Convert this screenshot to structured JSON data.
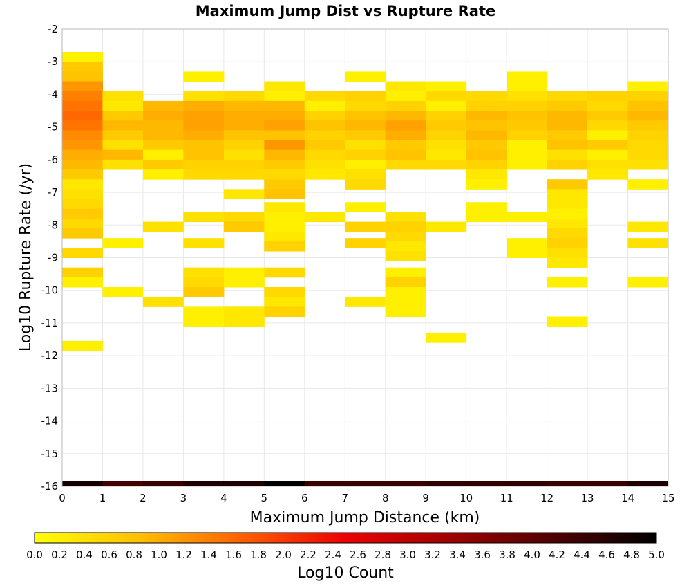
{
  "chart_data": {
    "type": "heatmap",
    "title": "Maximum Jump Dist vs Rupture Rate",
    "xlabel": "Maximum Jump Distance (km)",
    "ylabel": "Log10 Rupture Rate (/yr)",
    "xlim": [
      0,
      15
    ],
    "ylim": [
      -16,
      -2
    ],
    "x_ticks": [
      "0",
      "1",
      "2",
      "3",
      "4",
      "5",
      "6",
      "7",
      "8",
      "9",
      "10",
      "11",
      "12",
      "13",
      "14",
      "15"
    ],
    "y_ticks": [
      "-2",
      "-3",
      "-4",
      "-5",
      "-6",
      "-7",
      "-8",
      "-9",
      "-10",
      "-11",
      "-12",
      "-13",
      "-14",
      "-15",
      "-16"
    ],
    "bin_width_x": 1,
    "bin_height_y": 0.3,
    "grid": true,
    "colorbar": {
      "label": "Log10 Count",
      "range": [
        0,
        5
      ],
      "ticks": [
        "0.0",
        "0.2",
        "0.4",
        "0.6",
        "0.8",
        "1.0",
        "1.2",
        "1.4",
        "1.6",
        "1.8",
        "2.0",
        "2.2",
        "2.4",
        "2.6",
        "2.8",
        "3.0",
        "3.2",
        "3.4",
        "3.6",
        "3.8",
        "4.0",
        "4.2",
        "4.4",
        "4.6",
        "4.8",
        "5.0"
      ],
      "colors": [
        "#ffff00",
        "#ffc000",
        "#ff6000",
        "#ee0000",
        "#a00000",
        "#500000",
        "#000000"
      ]
    },
    "columns": [
      {
        "x": 0,
        "cells": [
          [
            -2.85,
            0.2
          ],
          [
            -3.15,
            0.7
          ],
          [
            -3.45,
            0.8
          ],
          [
            -3.75,
            1.2
          ],
          [
            -4.05,
            1.4
          ],
          [
            -4.35,
            1.5
          ],
          [
            -4.65,
            1.6
          ],
          [
            -4.95,
            1.5
          ],
          [
            -5.25,
            1.3
          ],
          [
            -5.55,
            1.2
          ],
          [
            -5.85,
            1.0
          ],
          [
            -6.15,
            0.9
          ],
          [
            -6.45,
            0.7
          ],
          [
            -6.75,
            0.3
          ],
          [
            -7.05,
            0.4
          ],
          [
            -7.35,
            0.5
          ],
          [
            -7.65,
            0.7
          ],
          [
            -7.95,
            0.5
          ],
          [
            -8.25,
            0.7
          ],
          [
            -8.85,
            0.5
          ],
          [
            -9.45,
            0.6
          ],
          [
            -9.75,
            0.2
          ],
          [
            -11.7,
            0.2
          ],
          [
            -16,
            4.8
          ]
        ]
      },
      {
        "x": 1,
        "cells": [
          [
            -4.05,
            0.4
          ],
          [
            -4.35,
            0.3
          ],
          [
            -4.65,
            0.7
          ],
          [
            -4.95,
            0.9
          ],
          [
            -5.25,
            0.7
          ],
          [
            -5.55,
            0.4
          ],
          [
            -5.85,
            0.9
          ],
          [
            -6.15,
            0.4
          ],
          [
            -8.55,
            0.2
          ],
          [
            -10.05,
            0.2
          ],
          [
            -16,
            4.3
          ]
        ]
      },
      {
        "x": 2,
        "cells": [
          [
            -4.35,
            0.9
          ],
          [
            -4.65,
            1.0
          ],
          [
            -4.95,
            0.9
          ],
          [
            -5.25,
            0.9
          ],
          [
            -5.55,
            0.7
          ],
          [
            -5.85,
            0.2
          ],
          [
            -6.15,
            0.7
          ],
          [
            -6.45,
            0.2
          ],
          [
            -8.05,
            0.4
          ],
          [
            -10.35,
            0.4
          ],
          [
            -16,
            4.4
          ]
        ]
      },
      {
        "x": 3,
        "cells": [
          [
            -3.45,
            0.2
          ],
          [
            -4.05,
            0.4
          ],
          [
            -4.35,
            1.0
          ],
          [
            -4.65,
            1.1
          ],
          [
            -4.95,
            1.1
          ],
          [
            -5.25,
            1.0
          ],
          [
            -5.55,
            0.8
          ],
          [
            -5.85,
            0.8
          ],
          [
            -6.15,
            0.6
          ],
          [
            -6.45,
            0.5
          ],
          [
            -7.75,
            0.4
          ],
          [
            -8.55,
            0.4
          ],
          [
            -9.45,
            0.4
          ],
          [
            -9.75,
            0.5
          ],
          [
            -10.05,
            0.7
          ],
          [
            -10.65,
            0.2
          ],
          [
            -10.95,
            0.2
          ],
          [
            -16,
            4.7
          ]
        ]
      },
      {
        "x": 4,
        "cells": [
          [
            -4.05,
            0.5
          ],
          [
            -4.35,
            0.9
          ],
          [
            -4.65,
            1.0
          ],
          [
            -4.95,
            1.0
          ],
          [
            -5.25,
            0.8
          ],
          [
            -5.55,
            0.6
          ],
          [
            -5.85,
            0.4
          ],
          [
            -6.15,
            0.6
          ],
          [
            -6.45,
            0.5
          ],
          [
            -7.05,
            0.3
          ],
          [
            -7.75,
            0.5
          ],
          [
            -8.05,
            0.7
          ],
          [
            -9.45,
            0.2
          ],
          [
            -9.75,
            0.2
          ],
          [
            -10.65,
            0.3
          ],
          [
            -10.95,
            0.3
          ],
          [
            -16,
            4.7
          ]
        ]
      },
      {
        "x": 5,
        "cells": [
          [
            -3.75,
            0.3
          ],
          [
            -4.05,
            0.2
          ],
          [
            -4.35,
            0.9
          ],
          [
            -4.65,
            1.0
          ],
          [
            -4.95,
            1.1
          ],
          [
            -5.25,
            0.8
          ],
          [
            -5.55,
            1.2
          ],
          [
            -5.85,
            0.9
          ],
          [
            -6.15,
            0.7
          ],
          [
            -6.45,
            0.5
          ],
          [
            -6.75,
            0.7
          ],
          [
            -7.05,
            0.8
          ],
          [
            -7.45,
            0.3
          ],
          [
            -7.75,
            0.2
          ],
          [
            -8.05,
            0.2
          ],
          [
            -8.35,
            0.3
          ],
          [
            -8.65,
            0.6
          ],
          [
            -9.45,
            0.5
          ],
          [
            -10.05,
            0.5
          ],
          [
            -10.35,
            0.3
          ],
          [
            -10.65,
            0.6
          ],
          [
            -16,
            5.0
          ]
        ]
      },
      {
        "x": 6,
        "cells": [
          [
            -4.05,
            0.5
          ],
          [
            -4.35,
            0.2
          ],
          [
            -4.65,
            0.6
          ],
          [
            -4.95,
            0.8
          ],
          [
            -5.25,
            0.6
          ],
          [
            -5.55,
            0.7
          ],
          [
            -5.85,
            0.5
          ],
          [
            -6.15,
            0.4
          ],
          [
            -6.45,
            0.3
          ],
          [
            -7.75,
            0.3
          ],
          [
            -16,
            4.4
          ]
        ]
      },
      {
        "x": 7,
        "cells": [
          [
            -3.45,
            0.2
          ],
          [
            -4.05,
            0.6
          ],
          [
            -4.35,
            0.5
          ],
          [
            -4.65,
            0.8
          ],
          [
            -4.95,
            0.9
          ],
          [
            -5.25,
            0.7
          ],
          [
            -5.55,
            0.4
          ],
          [
            -5.85,
            0.6
          ],
          [
            -6.15,
            0.2
          ],
          [
            -6.45,
            0.4
          ],
          [
            -6.75,
            0.5
          ],
          [
            -7.45,
            0.2
          ],
          [
            -8.05,
            0.6
          ],
          [
            -8.55,
            0.6
          ],
          [
            -10.35,
            0.3
          ],
          [
            -16,
            4.4
          ]
        ]
      },
      {
        "x": 8,
        "cells": [
          [
            -3.75,
            0.3
          ],
          [
            -4.05,
            0.2
          ],
          [
            -4.35,
            0.6
          ],
          [
            -4.65,
            0.9
          ],
          [
            -4.95,
            1.1
          ],
          [
            -5.25,
            1.0
          ],
          [
            -5.55,
            0.7
          ],
          [
            -5.85,
            0.8
          ],
          [
            -6.15,
            0.5
          ],
          [
            -7.75,
            0.4
          ],
          [
            -8.05,
            0.6
          ],
          [
            -8.35,
            0.5
          ],
          [
            -8.65,
            0.3
          ],
          [
            -8.95,
            0.4
          ],
          [
            -9.45,
            0.2
          ],
          [
            -9.75,
            0.6
          ],
          [
            -10.05,
            0.2
          ],
          [
            -10.35,
            0.2
          ],
          [
            -10.65,
            0.2
          ],
          [
            -16,
            4.4
          ]
        ]
      },
      {
        "x": 9,
        "cells": [
          [
            -3.75,
            0.2
          ],
          [
            -4.05,
            0.5
          ],
          [
            -4.35,
            0.2
          ],
          [
            -4.65,
            0.6
          ],
          [
            -4.95,
            0.7
          ],
          [
            -5.25,
            0.6
          ],
          [
            -5.55,
            0.4
          ],
          [
            -5.85,
            0.3
          ],
          [
            -6.15,
            0.5
          ],
          [
            -8.05,
            0.3
          ],
          [
            -11.45,
            0.2
          ],
          [
            -16,
            4.5
          ]
        ]
      },
      {
        "x": 10,
        "cells": [
          [
            -4.05,
            0.5
          ],
          [
            -4.35,
            0.6
          ],
          [
            -4.65,
            0.9
          ],
          [
            -4.95,
            0.8
          ],
          [
            -5.25,
            0.9
          ],
          [
            -5.55,
            0.7
          ],
          [
            -5.85,
            0.8
          ],
          [
            -6.15,
            0.6
          ],
          [
            -6.45,
            0.3
          ],
          [
            -6.75,
            0.2
          ],
          [
            -7.45,
            0.2
          ],
          [
            -7.75,
            0.2
          ],
          [
            -16,
            4.5
          ]
        ]
      },
      {
        "x": 11,
        "cells": [
          [
            -3.45,
            0.2
          ],
          [
            -3.75,
            0.2
          ],
          [
            -4.05,
            0.4
          ],
          [
            -4.35,
            0.6
          ],
          [
            -4.65,
            0.8
          ],
          [
            -4.95,
            0.7
          ],
          [
            -5.25,
            0.6
          ],
          [
            -5.55,
            0.2
          ],
          [
            -5.85,
            0.2
          ],
          [
            -6.15,
            0.2
          ],
          [
            -7.75,
            0.2
          ],
          [
            -8.55,
            0.2
          ],
          [
            -8.85,
            0.2
          ],
          [
            -16,
            4.5
          ]
        ]
      },
      {
        "x": 12,
        "cells": [
          [
            -4.05,
            0.5
          ],
          [
            -4.35,
            0.7
          ],
          [
            -4.65,
            0.9
          ],
          [
            -4.95,
            0.9
          ],
          [
            -5.25,
            0.7
          ],
          [
            -5.55,
            0.8
          ],
          [
            -5.85,
            0.4
          ],
          [
            -6.15,
            0.6
          ],
          [
            -6.75,
            0.7
          ],
          [
            -7.05,
            0.3
          ],
          [
            -7.35,
            0.3
          ],
          [
            -7.65,
            0.2
          ],
          [
            -7.95,
            0.3
          ],
          [
            -8.25,
            0.5
          ],
          [
            -8.55,
            0.6
          ],
          [
            -8.85,
            0.4
          ],
          [
            -9.15,
            0.3
          ],
          [
            -9.75,
            0.2
          ],
          [
            -10.95,
            0.2
          ],
          [
            -16,
            4.4
          ]
        ]
      },
      {
        "x": 13,
        "cells": [
          [
            -4.05,
            0.6
          ],
          [
            -4.35,
            0.5
          ],
          [
            -4.65,
            0.7
          ],
          [
            -4.95,
            0.5
          ],
          [
            -5.25,
            0.2
          ],
          [
            -5.55,
            0.7
          ],
          [
            -5.85,
            0.2
          ],
          [
            -6.15,
            0.4
          ],
          [
            -6.45,
            0.3
          ],
          [
            -16,
            4.4
          ]
        ]
      },
      {
        "x": 14,
        "cells": [
          [
            -3.75,
            0.2
          ],
          [
            -4.05,
            0.6
          ],
          [
            -4.35,
            0.8
          ],
          [
            -4.65,
            0.9
          ],
          [
            -4.95,
            0.7
          ],
          [
            -5.25,
            0.6
          ],
          [
            -5.55,
            0.5
          ],
          [
            -5.85,
            0.5
          ],
          [
            -6.15,
            0.4
          ],
          [
            -6.75,
            0.2
          ],
          [
            -8.05,
            0.3
          ],
          [
            -8.55,
            0.4
          ],
          [
            -9.75,
            0.2
          ],
          [
            -16,
            4.7
          ]
        ]
      }
    ]
  }
}
